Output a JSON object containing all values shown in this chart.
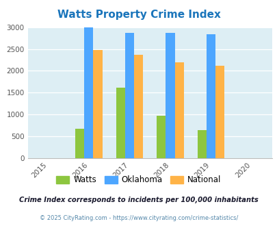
{
  "title": "Watts Property Crime Index",
  "years": [
    2016,
    2017,
    2018,
    2019
  ],
  "x_ticks": [
    2015,
    2016,
    2017,
    2018,
    2019,
    2020
  ],
  "watts": [
    670,
    1615,
    970,
    650
  ],
  "oklahoma": [
    3000,
    2870,
    2870,
    2840
  ],
  "national": [
    2470,
    2370,
    2200,
    2110
  ],
  "watts_color": "#8dc63f",
  "oklahoma_color": "#4da6ff",
  "national_color": "#ffb347",
  "ylim": [
    0,
    3000
  ],
  "yticks": [
    0,
    500,
    1000,
    1500,
    2000,
    2500,
    3000
  ],
  "bar_width": 0.22,
  "bg_color": "#ddeef4",
  "subtitle": "Crime Index corresponds to incidents per 100,000 inhabitants",
  "footer": "© 2025 CityRating.com - https://www.cityrating.com/crime-statistics/",
  "legend_labels": [
    "Watts",
    "Oklahoma",
    "National"
  ],
  "title_color": "#1a75bb",
  "subtitle_color": "#1a1a2e",
  "footer_color": "#5588aa"
}
